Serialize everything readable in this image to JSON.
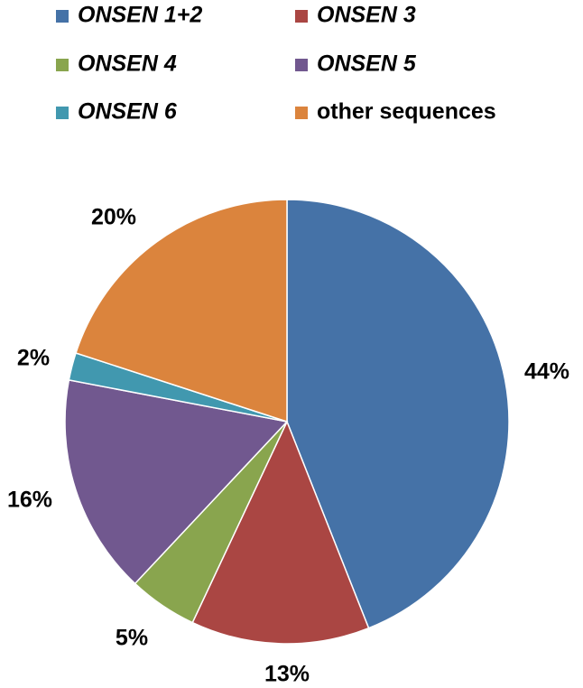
{
  "chart_data": {
    "type": "pie",
    "title": "",
    "legend_position": "top",
    "slices": [
      {
        "name": "ONSEN 1+2",
        "value": 44,
        "label": "44%",
        "color": "#4572a7",
        "italic": true
      },
      {
        "name": "ONSEN 3",
        "value": 13,
        "label": "13%",
        "color": "#aa4643",
        "italic": true
      },
      {
        "name": "ONSEN 4",
        "value": 5,
        "label": "5%",
        "color": "#89a54e",
        "italic": true
      },
      {
        "name": "ONSEN 5",
        "value": 16,
        "label": "16%",
        "color": "#71588f",
        "italic": true
      },
      {
        "name": "ONSEN 6",
        "value": 2,
        "label": "2%",
        "color": "#4198af",
        "italic": true
      },
      {
        "name": "other sequences",
        "value": 20,
        "label": "20%",
        "color": "#db843d",
        "italic": false
      }
    ]
  }
}
